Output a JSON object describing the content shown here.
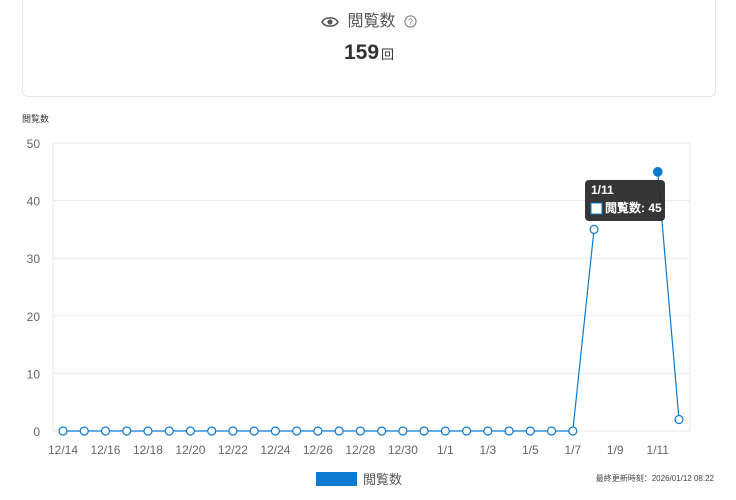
{
  "stat": {
    "title": "閲覧数",
    "value": "159",
    "unit": "回"
  },
  "footer": {
    "updated": "最終更新時刻：2026/01/12 08:22"
  },
  "tooltip": {
    "title": "1/11",
    "label": "閲覧数: 45"
  },
  "colors": {
    "series": "#0a7ad1",
    "grid": "#eaeaea",
    "tick": "#666666",
    "tooltip_bg": "#2b2b2b"
  },
  "chart_data": {
    "type": "line",
    "ylabel": "閲覧数",
    "ylim": [
      0,
      50
    ],
    "yticks": [
      0,
      10,
      20,
      30,
      40,
      50
    ],
    "x": [
      "12/14",
      "12/15",
      "12/16",
      "12/17",
      "12/18",
      "12/19",
      "12/20",
      "12/21",
      "12/22",
      "12/23",
      "12/24",
      "12/25",
      "12/26",
      "12/27",
      "12/28",
      "12/29",
      "12/30",
      "12/31",
      "1/1",
      "1/2",
      "1/3",
      "1/4",
      "1/5",
      "1/6",
      "1/7",
      "1/8",
      "1/9",
      "1/10",
      "1/11",
      "1/12"
    ],
    "xtick_labels": [
      "12/14",
      "12/16",
      "12/18",
      "12/20",
      "12/22",
      "12/24",
      "12/26",
      "12/28",
      "12/30",
      "1/1",
      "1/3",
      "1/5",
      "1/7",
      "1/9",
      "1/11"
    ],
    "series": [
      {
        "name": "閲覧数",
        "values": [
          0,
          0,
          0,
          0,
          0,
          0,
          0,
          0,
          0,
          0,
          0,
          0,
          0,
          0,
          0,
          0,
          0,
          0,
          0,
          0,
          0,
          0,
          0,
          0,
          0,
          35,
          null,
          null,
          45,
          2
        ]
      }
    ],
    "highlight": "1/11",
    "legend": "bottom-center",
    "grid": true
  }
}
